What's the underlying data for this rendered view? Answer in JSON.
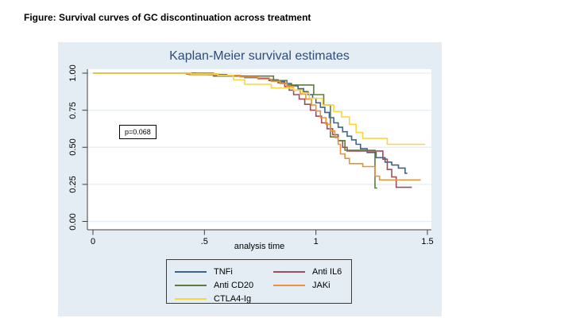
{
  "figure_caption": "Figure: Survival curves of GC discontinuation across treatment",
  "chart": {
    "title": "Kaplan-Meier survival estimates",
    "xlabel": "analysis time",
    "p_value_annotation": "p=0.068",
    "x_ticks": [
      "0",
      ".5",
      "1",
      "1.5"
    ],
    "y_ticks": [
      "0.00",
      "0.25",
      "0.50",
      "0.75",
      "1.00"
    ],
    "legend_labels": [
      "TNFi",
      "Anti IL6",
      "Anti CD20",
      "JAKi",
      "CTLA4-Ig"
    ]
  },
  "colors": {
    "panel_background": "#e3edf3",
    "plot_background": "#ffffff",
    "gridline": "#e3edf3",
    "axis": "#424242",
    "title_text": "#2f4d78",
    "tnfi": "#3d648d",
    "anti_il6": "#a04d5b",
    "anti_cd20": "#5f7b3e",
    "jaki": "#e6953b",
    "ctla4_ig": "#fbd63e"
  },
  "chart_data": {
    "type": "line",
    "step": true,
    "title": "Kaplan-Meier survival estimates",
    "xlabel": "analysis time",
    "ylabel": "",
    "xlim": [
      0,
      1.5
    ],
    "ylim": [
      0,
      1
    ],
    "x_tick_values": [
      0,
      0.5,
      1,
      1.5
    ],
    "y_tick_values": [
      0,
      0.25,
      0.5,
      0.75,
      1
    ],
    "grid": true,
    "legend_position": "bottom",
    "annotation": {
      "text": "p=0.068",
      "x": 0.17,
      "y": 0.63
    },
    "series": [
      {
        "name": "TNFi",
        "color": "#3d648d",
        "points": [
          [
            0,
            1.0
          ],
          [
            0.42,
            0.995
          ],
          [
            0.52,
            0.99
          ],
          [
            0.6,
            0.98
          ],
          [
            0.68,
            0.97
          ],
          [
            0.74,
            0.965
          ],
          [
            0.79,
            0.955
          ],
          [
            0.83,
            0.945
          ],
          [
            0.86,
            0.93
          ],
          [
            0.89,
            0.915
          ],
          [
            0.92,
            0.895
          ],
          [
            0.945,
            0.875
          ],
          [
            0.965,
            0.855
          ],
          [
            0.985,
            0.83
          ],
          [
            1.0,
            0.8
          ],
          [
            1.02,
            0.77
          ],
          [
            1.04,
            0.735
          ],
          [
            1.06,
            0.7
          ],
          [
            1.08,
            0.665
          ],
          [
            1.1,
            0.635
          ],
          [
            1.12,
            0.605
          ],
          [
            1.14,
            0.575
          ],
          [
            1.16,
            0.55
          ],
          [
            1.18,
            0.52
          ],
          [
            1.2,
            0.49
          ],
          [
            1.23,
            0.465
          ],
          [
            1.27,
            0.43
          ],
          [
            1.31,
            0.4
          ],
          [
            1.34,
            0.38
          ],
          [
            1.37,
            0.36
          ],
          [
            1.4,
            0.325
          ],
          [
            1.41,
            0.325
          ]
        ]
      },
      {
        "name": "Anti IL6",
        "color": "#a04d5b",
        "points": [
          [
            0,
            1.0
          ],
          [
            0.46,
            0.995
          ],
          [
            0.56,
            0.985
          ],
          [
            0.66,
            0.975
          ],
          [
            0.74,
            0.965
          ],
          [
            0.79,
            0.95
          ],
          [
            0.83,
            0.935
          ],
          [
            0.86,
            0.91
          ],
          [
            0.88,
            0.885
          ],
          [
            0.9,
            0.855
          ],
          [
            0.925,
            0.825
          ],
          [
            0.95,
            0.79
          ],
          [
            0.975,
            0.75
          ],
          [
            1.0,
            0.71
          ],
          [
            1.025,
            0.665
          ],
          [
            1.05,
            0.625
          ],
          [
            1.075,
            0.585
          ],
          [
            1.1,
            0.545
          ],
          [
            1.12,
            0.5
          ],
          [
            1.14,
            0.475
          ],
          [
            1.3,
            0.42
          ],
          [
            1.32,
            0.35
          ],
          [
            1.34,
            0.3
          ],
          [
            1.36,
            0.23
          ],
          [
            1.43,
            0.23
          ]
        ]
      },
      {
        "name": "Anti CD20",
        "color": "#5f7b3e",
        "points": [
          [
            0,
            1.0
          ],
          [
            0.54,
            0.98
          ],
          [
            0.81,
            0.95
          ],
          [
            0.87,
            0.92
          ],
          [
            0.99,
            0.855
          ],
          [
            1.035,
            0.785
          ],
          [
            1.065,
            0.57
          ],
          [
            1.1,
            0.545
          ],
          [
            1.13,
            0.48
          ],
          [
            1.265,
            0.225
          ],
          [
            1.275,
            0.225
          ]
        ]
      },
      {
        "name": "JAKi",
        "color": "#e6953b",
        "points": [
          [
            0,
            1.0
          ],
          [
            0.43,
            0.99
          ],
          [
            0.56,
            0.985
          ],
          [
            0.66,
            0.975
          ],
          [
            0.74,
            0.96
          ],
          [
            0.8,
            0.945
          ],
          [
            0.84,
            0.93
          ],
          [
            0.87,
            0.91
          ],
          [
            0.9,
            0.885
          ],
          [
            0.93,
            0.86
          ],
          [
            0.955,
            0.825
          ],
          [
            0.98,
            0.785
          ],
          [
            1.0,
            0.745
          ],
          [
            1.02,
            0.7
          ],
          [
            1.045,
            0.655
          ],
          [
            1.065,
            0.61
          ],
          [
            1.085,
            0.565
          ],
          [
            1.1,
            0.52
          ],
          [
            1.11,
            0.455
          ],
          [
            1.13,
            0.425
          ],
          [
            1.15,
            0.39
          ],
          [
            1.21,
            0.37
          ],
          [
            1.265,
            0.305
          ],
          [
            1.285,
            0.28
          ],
          [
            1.47,
            0.28
          ]
        ]
      },
      {
        "name": "CTLA4-Ig",
        "color": "#fbd63e",
        "points": [
          [
            0,
            1.0
          ],
          [
            0.44,
            0.995
          ],
          [
            0.56,
            0.985
          ],
          [
            0.63,
            0.955
          ],
          [
            0.68,
            0.925
          ],
          [
            0.8,
            0.9
          ],
          [
            0.9,
            0.885
          ],
          [
            0.94,
            0.865
          ],
          [
            0.97,
            0.83
          ],
          [
            1.03,
            0.785
          ],
          [
            1.08,
            0.74
          ],
          [
            1.115,
            0.705
          ],
          [
            1.15,
            0.655
          ],
          [
            1.18,
            0.6
          ],
          [
            1.21,
            0.56
          ],
          [
            1.32,
            0.52
          ],
          [
            1.49,
            0.52
          ]
        ]
      }
    ]
  }
}
